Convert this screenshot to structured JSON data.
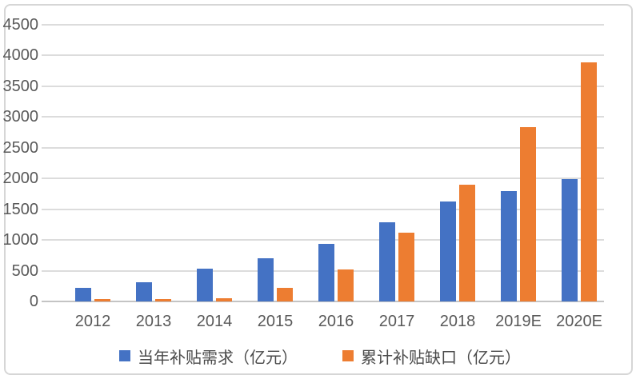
{
  "chart_data": {
    "type": "bar",
    "title": "",
    "categories": [
      "2012",
      "2013",
      "2014",
      "2015",
      "2016",
      "2017",
      "2018",
      "2019E",
      "2020E"
    ],
    "series": [
      {
        "name": "当年补贴需求（亿元）",
        "color": "#4472C4",
        "values": [
          220,
          315,
          535,
          700,
          935,
          1290,
          1620,
          1800,
          1990
        ]
      },
      {
        "name": "累计补贴缺口（亿元）",
        "color": "#ED7D31",
        "values": [
          30,
          45,
          55,
          215,
          515,
          1120,
          1900,
          2830,
          3885
        ]
      }
    ],
    "xlabel": "",
    "ylabel": "",
    "ylim": [
      0,
      4500
    ],
    "yticks": [
      0,
      500,
      1000,
      1500,
      2000,
      2500,
      3000,
      3500,
      4000,
      4500
    ],
    "grid": true,
    "legend_position": "bottom",
    "colors": {
      "axis_label": "#595959",
      "gridline": "#dcdcdc",
      "frame_border": "#d6d6d6",
      "background": "#ffffff"
    }
  }
}
